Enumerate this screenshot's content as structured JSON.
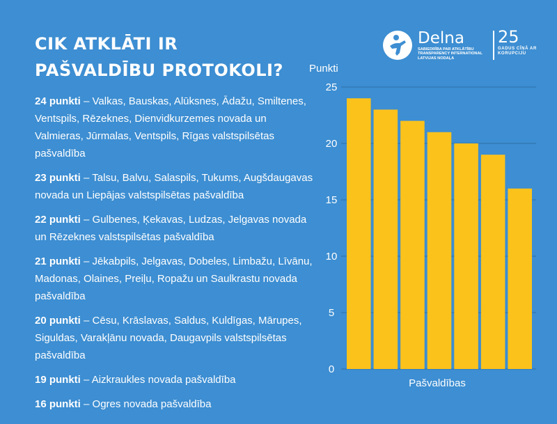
{
  "title": {
    "line1": "CIK ATKLĀTI IR",
    "line2": "PAŠVALDĪBU PROTOKOLI?"
  },
  "logo": {
    "icon": "delna-figure-icon",
    "name": "Delna",
    "subtitle": "SABIEDRĪBA PAR ATKLĀTĪBU TRANSPARENCY INTERNATIONAL LATVIJAS NODAĻA",
    "number": "25",
    "number_subtitle": "GADUS CĪŅĀ AR KORUPCIJU"
  },
  "entries": [
    {
      "points": "24 punkti",
      "text": " – Valkas, Bauskas, Alūksnes, Ādažu, Smiltenes, Ventspils, Rēzeknes, Dienvidkurzemes novada un Valmieras, Jūrmalas, Ventspils, Rīgas valstspilsētas pašvaldība"
    },
    {
      "points": "23 punkti",
      "text": " – Talsu, Balvu, Salaspils, Tukums, Augšdaugavas novada un Liepājas valstspilsētas pašvaldība"
    },
    {
      "points": "22 punkti",
      "text": " –  Gulbenes, Ķekavas, Ludzas, Jelgavas novada un Rēzeknes valstspilsētas pašvaldība"
    },
    {
      "points": "21 punkti",
      "text": " – Jēkabpils, Jelgavas, Dobeles, Limbažu, Līvānu, Madonas, Olaines, Preiļu, Ropažu un Saulkrastu novada pašvaldība"
    },
    {
      "points": "20 punkti",
      "text": " – Cēsu, Krāslavas, Saldus, Kuldīgas, Mārupes, Siguldas, Varakļānu novada, Daugavpils valstspilsētas pašvaldība"
    },
    {
      "points": "19 punkti",
      "text": " – Aizkraukles novada pašvaldība"
    },
    {
      "points": "16 punkti",
      "text": " – Ogres novada pašvaldība"
    }
  ],
  "chart_data": {
    "type": "bar",
    "values": [
      24,
      23,
      22,
      21,
      20,
      19,
      16
    ],
    "ylabel": "Punkti",
    "xlabel": "Pašvaldības",
    "ylim": [
      0,
      25
    ],
    "yticks": [
      0,
      5,
      10,
      15,
      20,
      25
    ],
    "grid": true,
    "bar_color": "#fbc21c",
    "grid_color": "#2f6fa8"
  }
}
